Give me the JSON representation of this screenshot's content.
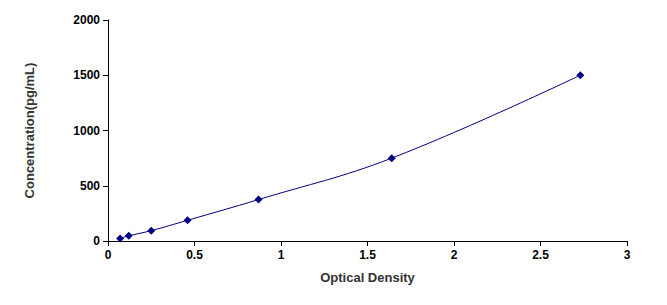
{
  "chart_data": {
    "type": "line",
    "x_label": "Optical Density",
    "y_label": "Concentration(pg/mL)",
    "x": [
      0.07,
      0.12,
      0.25,
      0.46,
      0.87,
      1.64,
      2.73
    ],
    "values": [
      23.44,
      46.88,
      93.75,
      187.5,
      375,
      750,
      1500
    ],
    "color": "#000080",
    "marker": "diamond",
    "line_style": "solid",
    "xlim": [
      0,
      3
    ],
    "xticks": [
      0,
      0.5,
      1,
      1.5,
      2,
      2.5,
      3
    ],
    "ylim": [
      0,
      2000
    ],
    "yticks": [
      0,
      500,
      1000,
      1500,
      2000
    ],
    "grid": false
  }
}
